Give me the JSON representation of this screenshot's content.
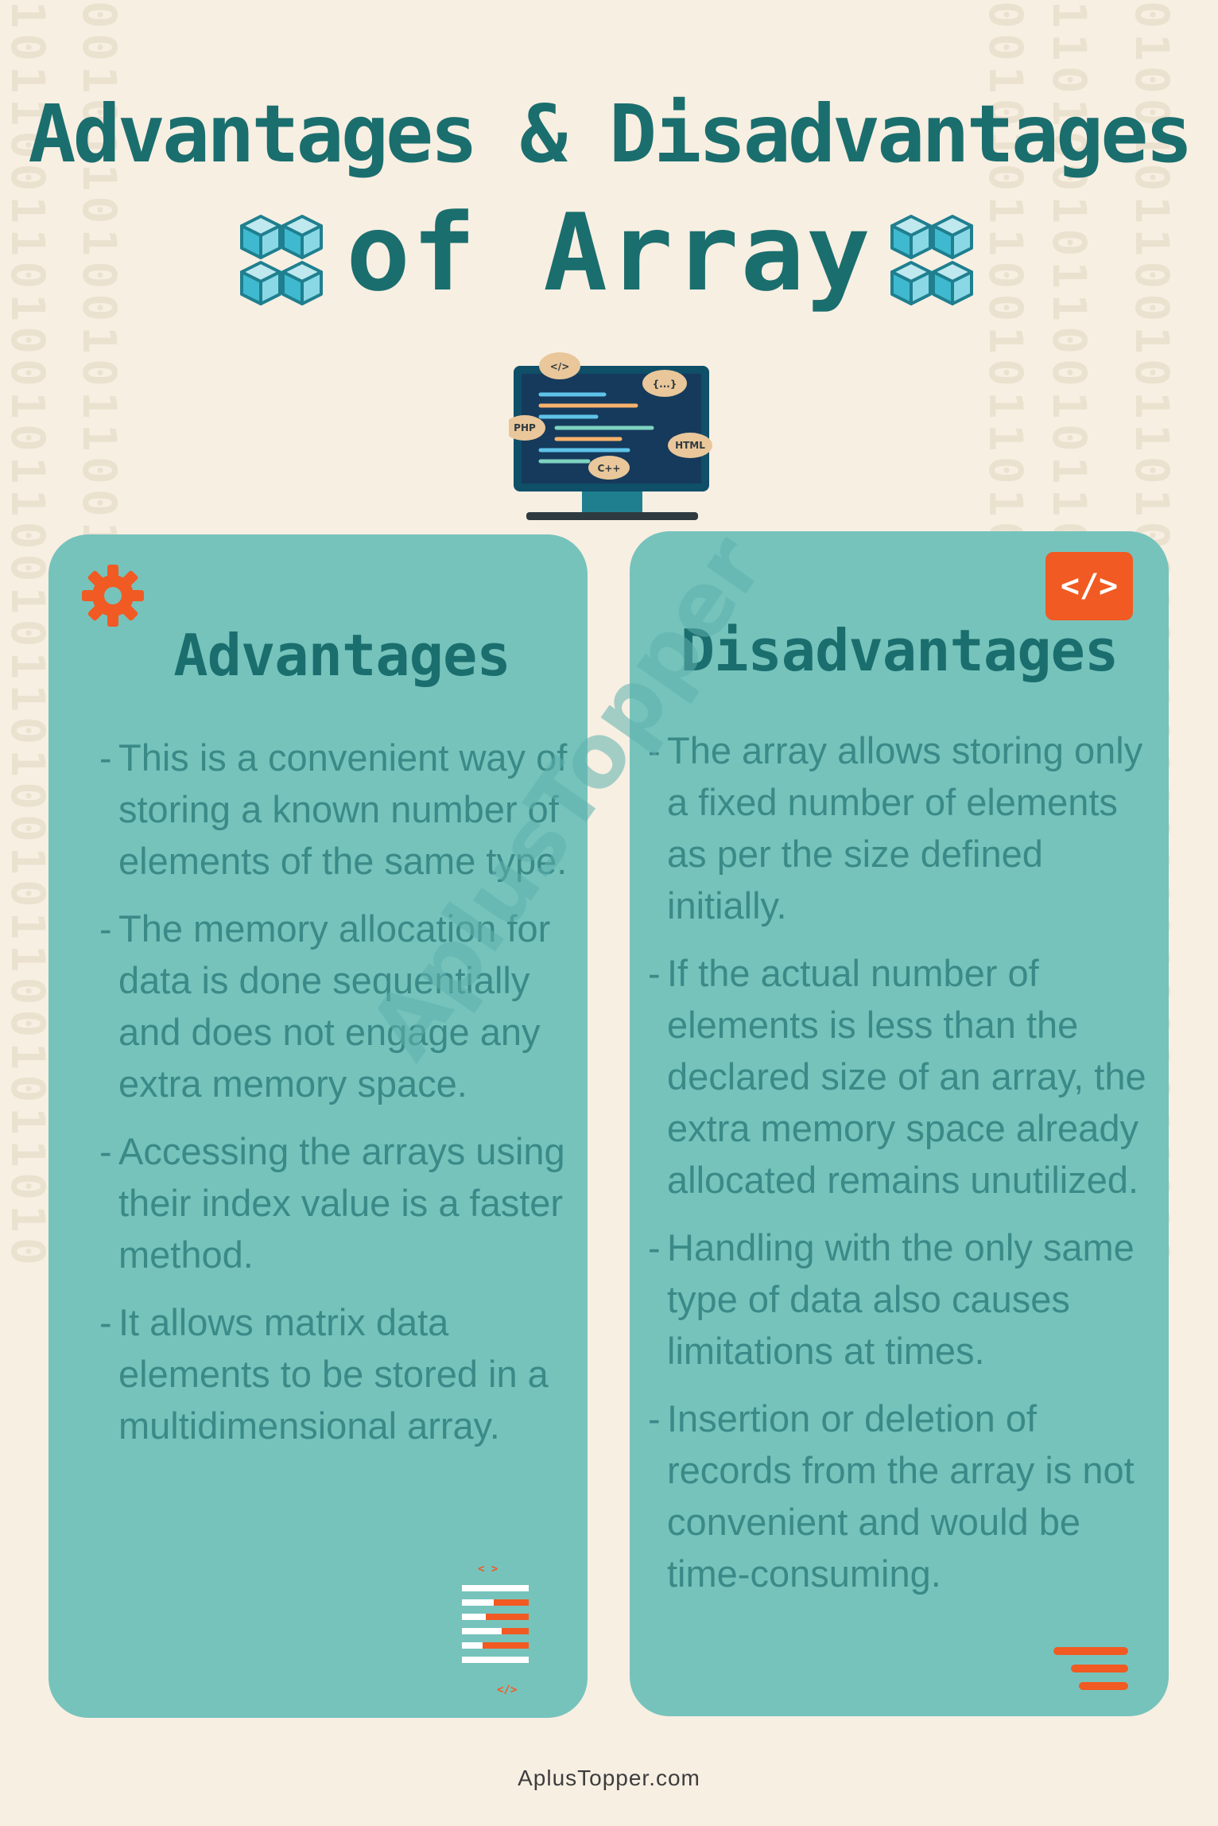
{
  "title": {
    "line1": "Advantages & Disadvantages",
    "line2": "of Array"
  },
  "monitor": {
    "labels": [
      "</>",
      "{...}",
      "PHP",
      "HTML",
      "C++"
    ]
  },
  "advantages": {
    "heading": "Advantages",
    "items": [
      "This is a convenient way of storing a known number of elements of the same type.",
      "The memory allocation for data is done sequentially and does not engage any extra memory space.",
      "Accessing the arrays using their index value is a faster method.",
      "It allows matrix data elements to be stored in a multidimensional array."
    ]
  },
  "disadvantages": {
    "heading": "Disadvantages",
    "badge": "</>",
    "items": [
      "The array allows storing only a fixed number of elements as per the size defined initially.",
      "If the actual number of elements is less than the declared size of an array, the extra memory space already allocated remains unutilized.",
      "Handling with the only same type of data also causes limitations at times.",
      "Insertion or deletion of records from the array is not convenient and would be time-consuming."
    ]
  },
  "icons": {
    "gear": "gear-icon",
    "code": "code-icon",
    "cube": "cubes-icon",
    "document": "code-document-icon",
    "menu": "menu-lines-icon"
  },
  "watermark": "AplusTopper",
  "doc_icon_labels": {
    "top": "< >",
    "bottom": "</>"
  },
  "footer": "AplusTopper.com",
  "colors": {
    "background": "#f7efe2",
    "title": "#1b6e6e",
    "card": "#76c3bc",
    "body_text": "#3a8a88",
    "accent": "#f15a22"
  }
}
